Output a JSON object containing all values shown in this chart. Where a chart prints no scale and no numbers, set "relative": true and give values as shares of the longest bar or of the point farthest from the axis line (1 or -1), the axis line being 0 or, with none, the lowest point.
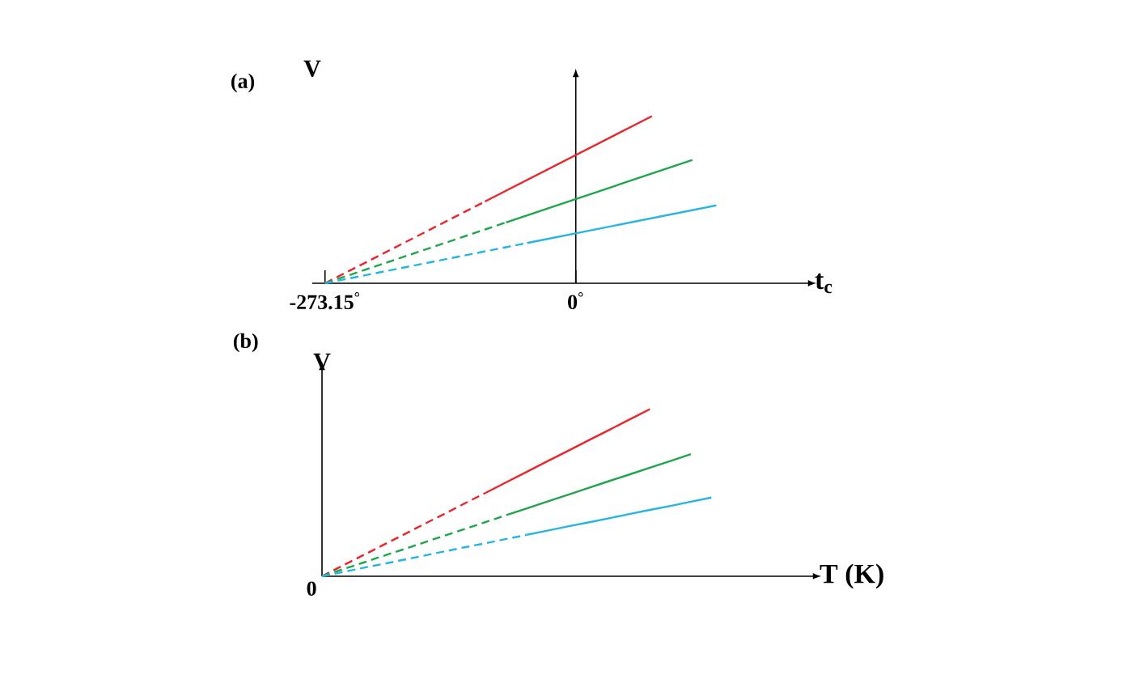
{
  "chart_data": [
    {
      "type": "line",
      "title": "(a)",
      "xlabel": "t$_{c}$",
      "ylabel": "V",
      "relative": true,
      "xlim": [
        -287,
        254
      ],
      "xticks": [
        {
          "value": -273.15,
          "label": "-273.15$^{°}$"
        },
        {
          "value": 0,
          "label": "0$^{°}$"
        }
      ],
      "tick_labels": "x",
      "series": [
        {
          "color": "#e8262b",
          "line_style": "dashed",
          "x": [
            -273.15,
            -99
          ],
          "values": [
            0,
            0.489
          ]
        },
        {
          "color": "#e8262b",
          "line_style": "solid",
          "x": [
            -99,
            83
          ],
          "values": [
            0.489,
            1
          ]
        },
        {
          "color": "#1fa64a",
          "line_style": "dashed",
          "x": [
            -273.15,
            -76
          ],
          "values": [
            0,
            0.364
          ]
        },
        {
          "color": "#1fa64a",
          "line_style": "solid",
          "x": [
            -76,
            127
          ],
          "values": [
            0.364,
            0.738
          ]
        },
        {
          "color": "#25b5e0",
          "line_style": "dashed",
          "x": [
            -273.15,
            -53
          ],
          "values": [
            0,
            0.241
          ]
        },
        {
          "color": "#25b5e0",
          "line_style": "solid",
          "x": [
            -53,
            153
          ],
          "values": [
            0.241,
            0.466
          ]
        }
      ]
    },
    {
      "type": "line",
      "title": "(b)",
      "xlabel": "T (K)",
      "ylabel": "V",
      "relative": true,
      "tick_labels": false,
      "annotations": [
        "0"
      ],
      "categories": [
        null,
        null,
        null,
        null,
        null,
        null,
        null,
        null,
        null,
        null,
        null,
        null,
        null,
        null,
        null,
        null,
        null,
        null,
        null,
        null,
        null,
        null,
        null,
        null
      ],
      "series": [
        {
          "color": "#e8262b",
          "line_style": "dashed",
          "values": [
            0,
            0.063,
            0.125,
            0.188,
            0.25,
            0.313,
            0.375,
            0.438,
            0.5,
            null,
            null,
            null,
            null,
            null,
            null,
            null,
            null,
            null,
            null,
            null,
            null,
            null,
            null,
            null
          ]
        },
        {
          "color": "#e8262b",
          "line_style": "solid",
          "values": [
            null,
            null,
            null,
            null,
            null,
            null,
            null,
            null,
            0.5,
            0.563,
            0.625,
            0.688,
            0.75,
            0.813,
            0.875,
            0.938,
            1,
            null,
            null,
            null,
            null,
            null,
            null,
            null
          ]
        },
        {
          "color": "#1fa64a",
          "line_style": "dashed",
          "values": [
            0,
            0.041,
            0.081,
            0.122,
            0.162,
            0.203,
            0.244,
            0.284,
            0.325,
            0.366,
            null,
            null,
            null,
            null,
            null,
            null,
            null,
            null,
            null,
            null,
            null,
            null,
            null,
            null
          ]
        },
        {
          "color": "#1fa64a",
          "line_style": "solid",
          "values": [
            null,
            null,
            null,
            null,
            null,
            null,
            null,
            null,
            null,
            0.366,
            0.406,
            0.447,
            0.487,
            0.528,
            0.569,
            0.609,
            0.65,
            0.69,
            0.731,
            null,
            null,
            null,
            null,
            null
          ]
        },
        {
          "color": "#25b5e0",
          "line_style": "dashed",
          "values": [
            0,
            0.025,
            0.05,
            0.074,
            0.099,
            0.124,
            0.149,
            0.174,
            0.198,
            0.223,
            0.248,
            null,
            null,
            null,
            null,
            null,
            null,
            null,
            null,
            null,
            null,
            null,
            null,
            null
          ]
        },
        {
          "color": "#25b5e0",
          "line_style": "solid",
          "values": [
            null,
            null,
            null,
            null,
            null,
            null,
            null,
            null,
            null,
            null,
            0.248,
            0.273,
            0.298,
            0.322,
            0.347,
            0.372,
            0.397,
            0.421,
            0.446,
            0.471,
            null,
            null,
            null,
            null
          ]
        }
      ]
    }
  ]
}
